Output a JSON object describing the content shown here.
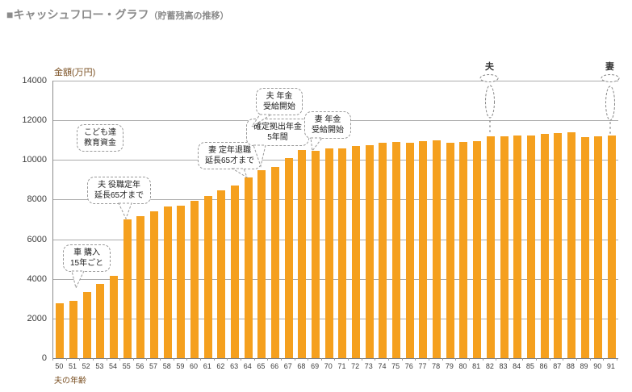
{
  "page": {
    "title_marker": "■",
    "title_main": "キャッシュフロー・グラフ",
    "title_sub": "（貯蓄残高の推移）"
  },
  "chart_data": {
    "type": "bar",
    "title": "キャッシュフロー・グラフ（貯蓄残高の推移）",
    "ylabel": "金額(万円)",
    "xlabel": "夫の年齢",
    "ylim": [
      0,
      14000
    ],
    "ytick_interval": 2000,
    "yticks": [
      14000,
      12000,
      10000,
      8000,
      6000,
      4000,
      2000,
      0
    ],
    "grid": "on",
    "legend": "none",
    "bar_color": "#F5A01E",
    "categories": [
      50,
      51,
      52,
      53,
      54,
      55,
      56,
      57,
      58,
      59,
      60,
      61,
      62,
      63,
      64,
      65,
      66,
      67,
      68,
      69,
      70,
      71,
      72,
      73,
      74,
      75,
      76,
      77,
      78,
      79,
      80,
      81,
      82,
      83,
      84,
      85,
      86,
      87,
      88,
      89,
      90,
      91
    ],
    "values": [
      2750,
      2900,
      3350,
      3750,
      4150,
      7000,
      7150,
      7400,
      7650,
      7700,
      7950,
      8200,
      8450,
      8700,
      9100,
      9500,
      9650,
      10100,
      10500,
      10450,
      10600,
      10600,
      10700,
      10750,
      10850,
      10900,
      10850,
      10950,
      11000,
      10850,
      10900,
      10950,
      11200,
      11200,
      11250,
      11250,
      11300,
      11350,
      11400,
      11150,
      11200,
      11250
    ],
    "annotations": [
      {
        "id": "kodomo-kyoiku",
        "lines": [
          "こども達",
          "教育資金"
        ]
      },
      {
        "id": "kuruma-konyu",
        "lines": [
          "車 購入",
          "15年ごと"
        ],
        "points_to_age": 51
      },
      {
        "id": "otto-yakushoku-teinen",
        "lines": [
          "夫 役職定年",
          "延長65才まで"
        ],
        "points_to_age": 55
      },
      {
        "id": "tsuma-teinen-taishoku",
        "lines": [
          "妻 定年退職",
          "延長65才まで"
        ],
        "points_to_age": 64
      },
      {
        "id": "kakutei-kyoshutsu-nenkin",
        "lines": [
          "確定拠出年金",
          "5年間"
        ],
        "points_to_age": 65
      },
      {
        "id": "otto-nenkin-jukyu",
        "lines": [
          "夫 年金",
          "受給開始"
        ],
        "points_to_age": 65
      },
      {
        "id": "tsuma-nenkin-jukyu",
        "lines": [
          "妻 年金",
          "受給開始"
        ],
        "points_to_age": 70
      }
    ],
    "markers": [
      {
        "label": "夫",
        "age": 82
      },
      {
        "label": "妻",
        "age": 91
      }
    ]
  }
}
